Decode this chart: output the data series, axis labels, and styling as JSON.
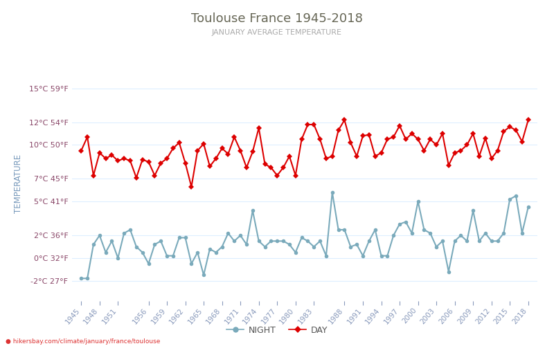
{
  "title": "Toulouse France 1945-2018",
  "subtitle": "JANUARY AVERAGE TEMPERATURE",
  "ylabel": "TEMPERATURE",
  "watermark": "● hikersbay.com/climate/january/france/toulouse",
  "background_color": "#ffffff",
  "grid_color": "#ddeeff",
  "title_color": "#666655",
  "subtitle_color": "#aaaaaa",
  "ylabel_color": "#7799bb",
  "ytick_color": "#884466",
  "xtick_color": "#8899bb",
  "years": [
    1945,
    1946,
    1947,
    1948,
    1949,
    1950,
    1951,
    1952,
    1953,
    1954,
    1955,
    1956,
    1957,
    1958,
    1959,
    1960,
    1961,
    1962,
    1963,
    1964,
    1965,
    1966,
    1967,
    1968,
    1969,
    1970,
    1971,
    1972,
    1973,
    1974,
    1975,
    1976,
    1977,
    1978,
    1979,
    1980,
    1981,
    1982,
    1983,
    1984,
    1985,
    1986,
    1987,
    1988,
    1989,
    1990,
    1991,
    1992,
    1993,
    1994,
    1995,
    1996,
    1997,
    1998,
    1999,
    2000,
    2001,
    2002,
    2003,
    2004,
    2005,
    2006,
    2007,
    2008,
    2009,
    2010,
    2011,
    2012,
    2013,
    2014,
    2015,
    2016,
    2017,
    2018
  ],
  "day_temps": [
    9.5,
    10.7,
    7.3,
    9.3,
    8.8,
    9.1,
    8.6,
    8.8,
    8.6,
    7.1,
    8.7,
    8.5,
    7.3,
    8.4,
    8.8,
    9.7,
    10.2,
    8.4,
    6.3,
    9.5,
    10.1,
    8.1,
    8.8,
    9.7,
    9.2,
    10.7,
    9.5,
    8.0,
    9.4,
    11.5,
    8.3,
    8.0,
    7.3,
    8.0,
    9.0,
    7.3,
    10.5,
    11.8,
    11.8,
    10.5,
    8.8,
    9.0,
    11.3,
    12.2,
    10.2,
    9.0,
    10.8,
    10.9,
    9.0,
    9.3,
    10.5,
    10.7,
    11.7,
    10.5,
    11.0,
    10.5,
    9.5,
    10.5,
    10.0,
    11.0,
    8.2,
    9.3,
    9.5,
    10.0,
    11.0,
    9.0,
    10.6,
    8.8,
    9.5,
    11.2,
    11.6,
    11.3,
    10.3,
    12.2
  ],
  "night_temps": [
    -1.8,
    -1.8,
    1.2,
    2.0,
    0.5,
    1.5,
    0.0,
    2.2,
    2.5,
    1.0,
    0.5,
    -0.5,
    1.2,
    1.5,
    0.2,
    0.2,
    1.8,
    1.8,
    -0.5,
    0.5,
    -1.5,
    0.8,
    0.5,
    1.0,
    2.2,
    1.5,
    2.0,
    1.2,
    4.2,
    1.5,
    1.0,
    1.5,
    1.5,
    1.5,
    1.2,
    0.5,
    1.8,
    1.5,
    1.0,
    1.5,
    0.2,
    5.8,
    2.5,
    2.5,
    1.0,
    1.2,
    0.2,
    1.5,
    2.5,
    0.2,
    0.2,
    2.0,
    3.0,
    3.2,
    2.2,
    5.0,
    2.5,
    2.2,
    1.0,
    1.5,
    -1.2,
    1.5,
    2.0,
    1.5,
    4.2,
    1.5,
    2.2,
    1.5,
    1.5,
    2.2,
    5.2,
    5.5,
    2.2,
    4.5
  ],
  "day_color": "#dd0000",
  "night_color": "#7aaabb",
  "marker_size_day": 4,
  "marker_size_night": 4,
  "line_width": 1.5,
  "yticks_c": [
    -2,
    0,
    2,
    5,
    7,
    10,
    12,
    15
  ],
  "yticks_f": [
    27,
    32,
    36,
    41,
    45,
    50,
    54,
    59
  ],
  "ylim": [
    -3.8,
    17.0
  ],
  "xlim": [
    1943.5,
    2019.5
  ],
  "xtick_years": [
    1945,
    1948,
    1951,
    1956,
    1959,
    1962,
    1965,
    1968,
    1971,
    1974,
    1977,
    1980,
    1983,
    1988,
    1991,
    1994,
    1997,
    2000,
    2003,
    2006,
    2009,
    2012,
    2015,
    2018
  ],
  "legend_night_label": "NIGHT",
  "legend_day_label": "DAY"
}
